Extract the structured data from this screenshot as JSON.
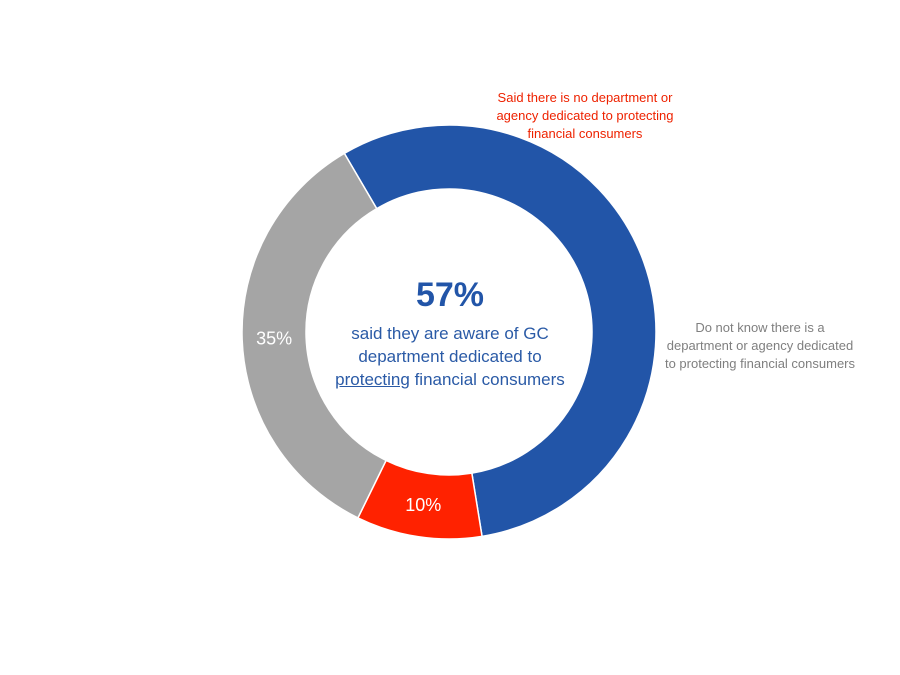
{
  "chart_data": {
    "type": "pie",
    "donut": true,
    "slices": [
      {
        "label": "said they are aware of GC department dedicated to protecting financial consumers",
        "value": 57,
        "color": "#2255a8",
        "data_label": "57%"
      },
      {
        "label": "Said there is no department or agency dedicated to protecting financial consumers",
        "value": 10,
        "color": "#ff2200",
        "data_label": "10%"
      },
      {
        "label": "Do not know there is a department or agency dedicated to protecting financial consumers",
        "value": 35,
        "color": "#a5a5a5",
        "data_label": "35%"
      }
    ]
  },
  "center": {
    "value": "57%",
    "line1": "said they are aware of GC",
    "line2": "department dedicated to",
    "line3_underlined": "protecting",
    "line3_rest": " financial consumers"
  },
  "callouts": {
    "no_department": {
      "line1": "Said there is no department or",
      "line2": "agency dedicated to protecting",
      "line3": "financial consumers"
    },
    "do_not_know": {
      "line1": "Do not know there is a",
      "line2": "department or agency dedicated",
      "line3": "to protecting financial consumers"
    }
  }
}
